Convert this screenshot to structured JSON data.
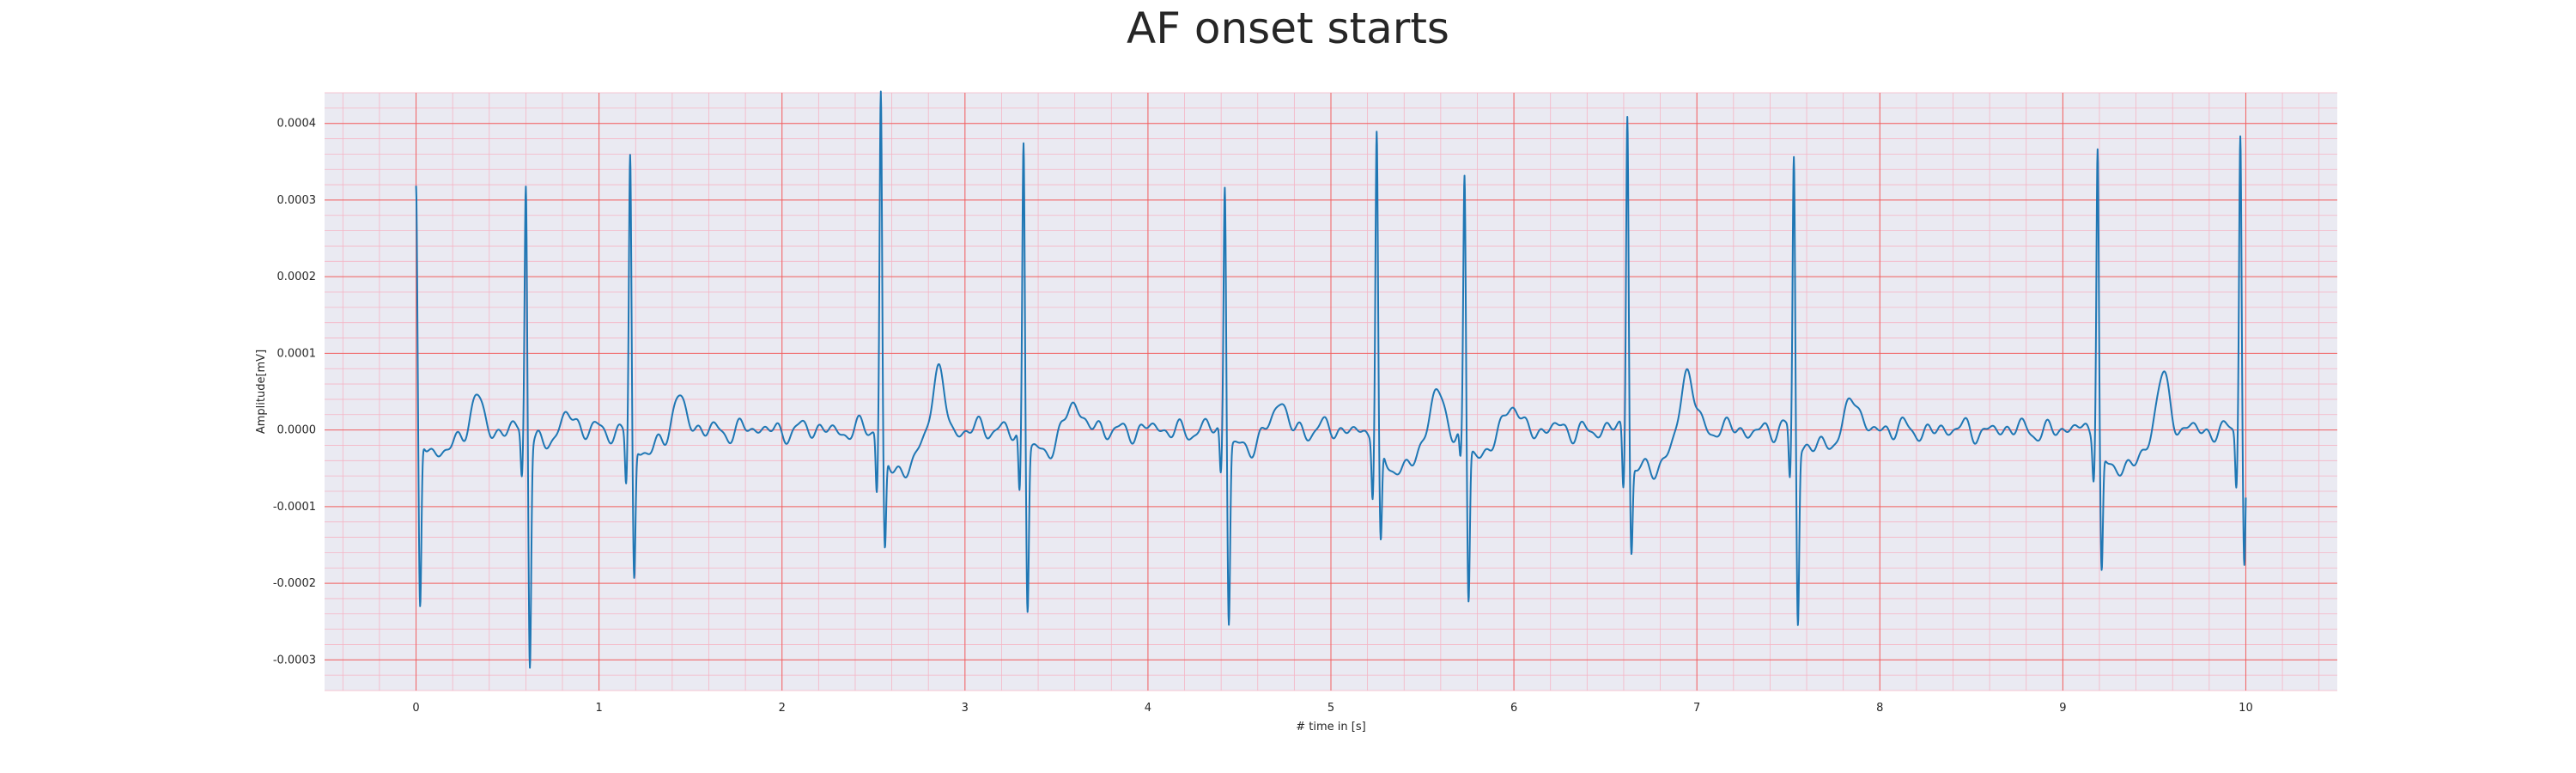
{
  "chart_data": {
    "type": "line",
    "title": "AF onset starts",
    "xlabel": "# time in [s]",
    "ylabel": "Amplitude[mV]",
    "xlim": [
      -0.5,
      10.5
    ],
    "ylim": [
      -0.00034,
      0.00044
    ],
    "x_ticks": [
      0,
      1,
      2,
      3,
      4,
      5,
      6,
      7,
      8,
      9,
      10
    ],
    "x_tick_labels": [
      "0",
      "1",
      "2",
      "3",
      "4",
      "5",
      "6",
      "7",
      "8",
      "9",
      "10"
    ],
    "y_ticks": [
      -0.0003,
      -0.0002,
      -0.0001,
      0.0,
      0.0001,
      0.0002,
      0.0003,
      0.0004
    ],
    "y_tick_labels": [
      "-0.0003",
      "-0.0002",
      "-0.0001",
      "0.0000",
      "0.0001",
      "0.0002",
      "0.0003",
      "0.0004"
    ],
    "grid": true,
    "background_color": "#eaeaf2",
    "major_grid_color": "#f06060",
    "minor_grid_color": "#f5b5c5",
    "series": [
      {
        "color": "#1f77b4",
        "beats": [
          {
            "t": 0.0,
            "r": 0.00031,
            "q": -1e-05,
            "s": -0.00024,
            "st": -2.5e-05,
            "t_wave": 4e-05,
            "t_offset": 0.33
          },
          {
            "t": 0.6,
            "r": 0.000325,
            "q": -6e-05,
            "s": -0.0003,
            "st": -2e-05,
            "t_wave": 2e-05,
            "t_offset": 0.22
          },
          {
            "t": 1.17,
            "r": 0.000355,
            "q": -7e-05,
            "s": -0.000195,
            "st": -3e-05,
            "t_wave": 4.5e-05,
            "t_offset": 0.26
          },
          {
            "t": 2.54,
            "r": 0.00044,
            "q": -8e-05,
            "s": -0.000155,
            "st": -5e-05,
            "t_wave": 8e-05,
            "t_offset": 0.31
          },
          {
            "t": 3.32,
            "r": 0.00038,
            "q": -8e-05,
            "s": -0.00023,
            "st": -3e-05,
            "t_wave": 4.5e-05,
            "t_offset": 0.27
          },
          {
            "t": 4.42,
            "r": 0.000325,
            "q": -6e-05,
            "s": -0.000245,
            "st": -2e-05,
            "t_wave": 4e-05,
            "t_offset": 0.3
          },
          {
            "t": 5.25,
            "r": 0.000385,
            "q": -8e-05,
            "s": -0.000155,
            "st": -5e-05,
            "t_wave": 5e-05,
            "t_offset": 0.32
          },
          {
            "t": 5.73,
            "r": 0.00033,
            "q": -4e-05,
            "s": -0.00022,
            "st": -3e-05,
            "t_wave": 4e-05,
            "t_offset": 0.26
          },
          {
            "t": 6.62,
            "r": 0.00042,
            "q": -8e-05,
            "s": -0.000145,
            "st": -5e-05,
            "t_wave": 8.5e-05,
            "t_offset": 0.33
          },
          {
            "t": 7.53,
            "r": 0.000355,
            "q": -7e-05,
            "s": -0.000245,
            "st": -2e-05,
            "t_wave": 4.5e-05,
            "t_offset": 0.33
          },
          {
            "t": 9.19,
            "r": 0.00038,
            "q": -5e-05,
            "s": -0.00018,
            "st": -5e-05,
            "t_wave": 7.5e-05,
            "t_offset": 0.35
          },
          {
            "t": 9.97,
            "r": 0.000395,
            "q": -7e-05,
            "s": -0.00018,
            "st": -1e-05,
            "t_wave": 0.0,
            "t_offset": 0.3
          }
        ],
        "t_end": 10.0
      }
    ]
  }
}
